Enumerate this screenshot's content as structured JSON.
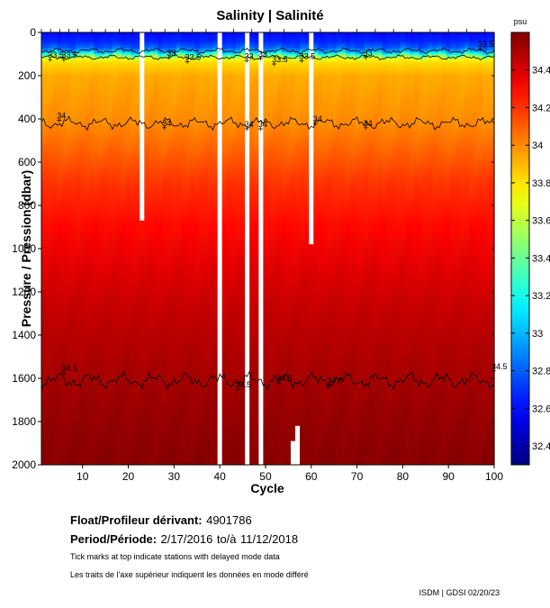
{
  "chart_data": {
    "type": "heatmap",
    "title": "Salinity | Salinité",
    "xlabel": "Cycle",
    "ylabel": "Pressure / Pression (dbar)",
    "xlim": [
      1,
      100
    ],
    "ylim": [
      0,
      2000
    ],
    "x_ticks": [
      10,
      20,
      30,
      40,
      50,
      60,
      70,
      80,
      90,
      100
    ],
    "y_ticks": [
      0,
      200,
      400,
      600,
      800,
      1000,
      1200,
      1400,
      1600,
      1800,
      2000
    ],
    "colorbar": {
      "unit": "psu",
      "min": 32.3,
      "max": 34.6,
      "ticks": [
        32.4,
        32.6,
        32.8,
        33.0,
        33.2,
        33.4,
        33.6,
        33.8,
        34.0,
        34.2,
        34.4
      ],
      "tick_labels": [
        "32.4",
        "32.6",
        "32.8",
        "33",
        "33.2",
        "33.4",
        "33.6",
        "33.8",
        "34",
        "34.2",
        "34.4"
      ]
    },
    "profile_levels": [
      {
        "pressure": 0,
        "salinity": 32.6
      },
      {
        "pressure": 60,
        "salinity": 32.7
      },
      {
        "pressure": 90,
        "salinity": 33.0
      },
      {
        "pressure": 110,
        "salinity": 33.5
      },
      {
        "pressure": 130,
        "salinity": 33.8
      },
      {
        "pressure": 200,
        "salinity": 33.93
      },
      {
        "pressure": 420,
        "salinity": 34.0
      },
      {
        "pressure": 700,
        "salinity": 34.2
      },
      {
        "pressure": 1000,
        "salinity": 34.35
      },
      {
        "pressure": 1300,
        "salinity": 34.45
      },
      {
        "pressure": 1600,
        "salinity": 34.52
      },
      {
        "pressure": 2000,
        "salinity": 34.58
      }
    ],
    "contours": [
      {
        "level": 33,
        "label": "33",
        "mean_pressure": 85,
        "amplitude": 12
      },
      {
        "level": 33.5,
        "label": "33.5",
        "mean_pressure": 115,
        "amplitude": 10
      },
      {
        "level": 34,
        "label": "34",
        "mean_pressure": 420,
        "amplitude": 25
      },
      {
        "level": 34.5,
        "label": "34.5",
        "mean_pressure": 1610,
        "amplitude": 35
      }
    ],
    "contour_labels": [
      {
        "text": "33.5",
        "cycle": 3,
        "pressure": 105
      },
      {
        "text": "33.5",
        "cycle": 6,
        "pressure": 105
      },
      {
        "text": "33",
        "cycle": 29,
        "pressure": 95
      },
      {
        "text": "33.5",
        "cycle": 33,
        "pressure": 115
      },
      {
        "text": "33",
        "cycle": 46,
        "pressure": 110
      },
      {
        "text": "33",
        "cycle": 49,
        "pressure": 100
      },
      {
        "text": "33.5",
        "cycle": 52,
        "pressure": 125
      },
      {
        "text": "33.5",
        "cycle": 58,
        "pressure": 110
      },
      {
        "text": "33",
        "cycle": 72,
        "pressure": 95
      },
      {
        "text": "33.5",
        "cycle": 97,
        "pressure": 55
      },
      {
        "text": "34",
        "cycle": 5,
        "pressure": 385
      },
      {
        "text": "34",
        "cycle": 28,
        "pressure": 420
      },
      {
        "text": "34",
        "cycle": 46,
        "pressure": 425
      },
      {
        "text": "34",
        "cycle": 49,
        "pressure": 425
      },
      {
        "text": "34",
        "cycle": 61,
        "pressure": 400
      },
      {
        "text": "34",
        "cycle": 72,
        "pressure": 420
      },
      {
        "text": "34.5",
        "cycle": 6,
        "pressure": 1555
      },
      {
        "text": "34.5",
        "cycle": 44,
        "pressure": 1630
      },
      {
        "text": "34.5",
        "cycle": 53,
        "pressure": 1600
      },
      {
        "text": "34.5",
        "cycle": 64,
        "pressure": 1610
      },
      {
        "text": "34.5",
        "cycle": 100,
        "pressure": 1545
      }
    ],
    "missing_data": [
      {
        "cycle": 23,
        "from_pressure": 0,
        "to_pressure": 870
      },
      {
        "cycle": 40,
        "from_pressure": 0,
        "to_pressure": 2000
      },
      {
        "cycle": 46,
        "from_pressure": 0,
        "to_pressure": 2000
      },
      {
        "cycle": 49,
        "from_pressure": 0,
        "to_pressure": 2000
      },
      {
        "cycle": 56,
        "from_pressure": 1890,
        "to_pressure": 2000
      },
      {
        "cycle": 57,
        "from_pressure": 1820,
        "to_pressure": 2000
      },
      {
        "cycle": 60,
        "from_pressure": 0,
        "to_pressure": 980
      }
    ],
    "delayed_mode_ticks": [
      1,
      3,
      5,
      7,
      9,
      12,
      15,
      18,
      21,
      25,
      28,
      31,
      34,
      37,
      43,
      47,
      51,
      54,
      58,
      62,
      66,
      70,
      74,
      78,
      82,
      86,
      90,
      94,
      98
    ]
  },
  "float_info": {
    "float_label": "Float/Profileur dérivant:",
    "float_id": "4901786",
    "period_label": "Period/Période:",
    "period_start": "2/17/2016",
    "period_sep": "to/à",
    "period_end": "11/12/2018",
    "note_en": "Tick marks at top indicate stations with delayed mode data",
    "note_fr": "Les traits de l'axe supérieur indiquent les données en mode différé"
  },
  "credit": "ISDM | GDSI  02/20/23"
}
